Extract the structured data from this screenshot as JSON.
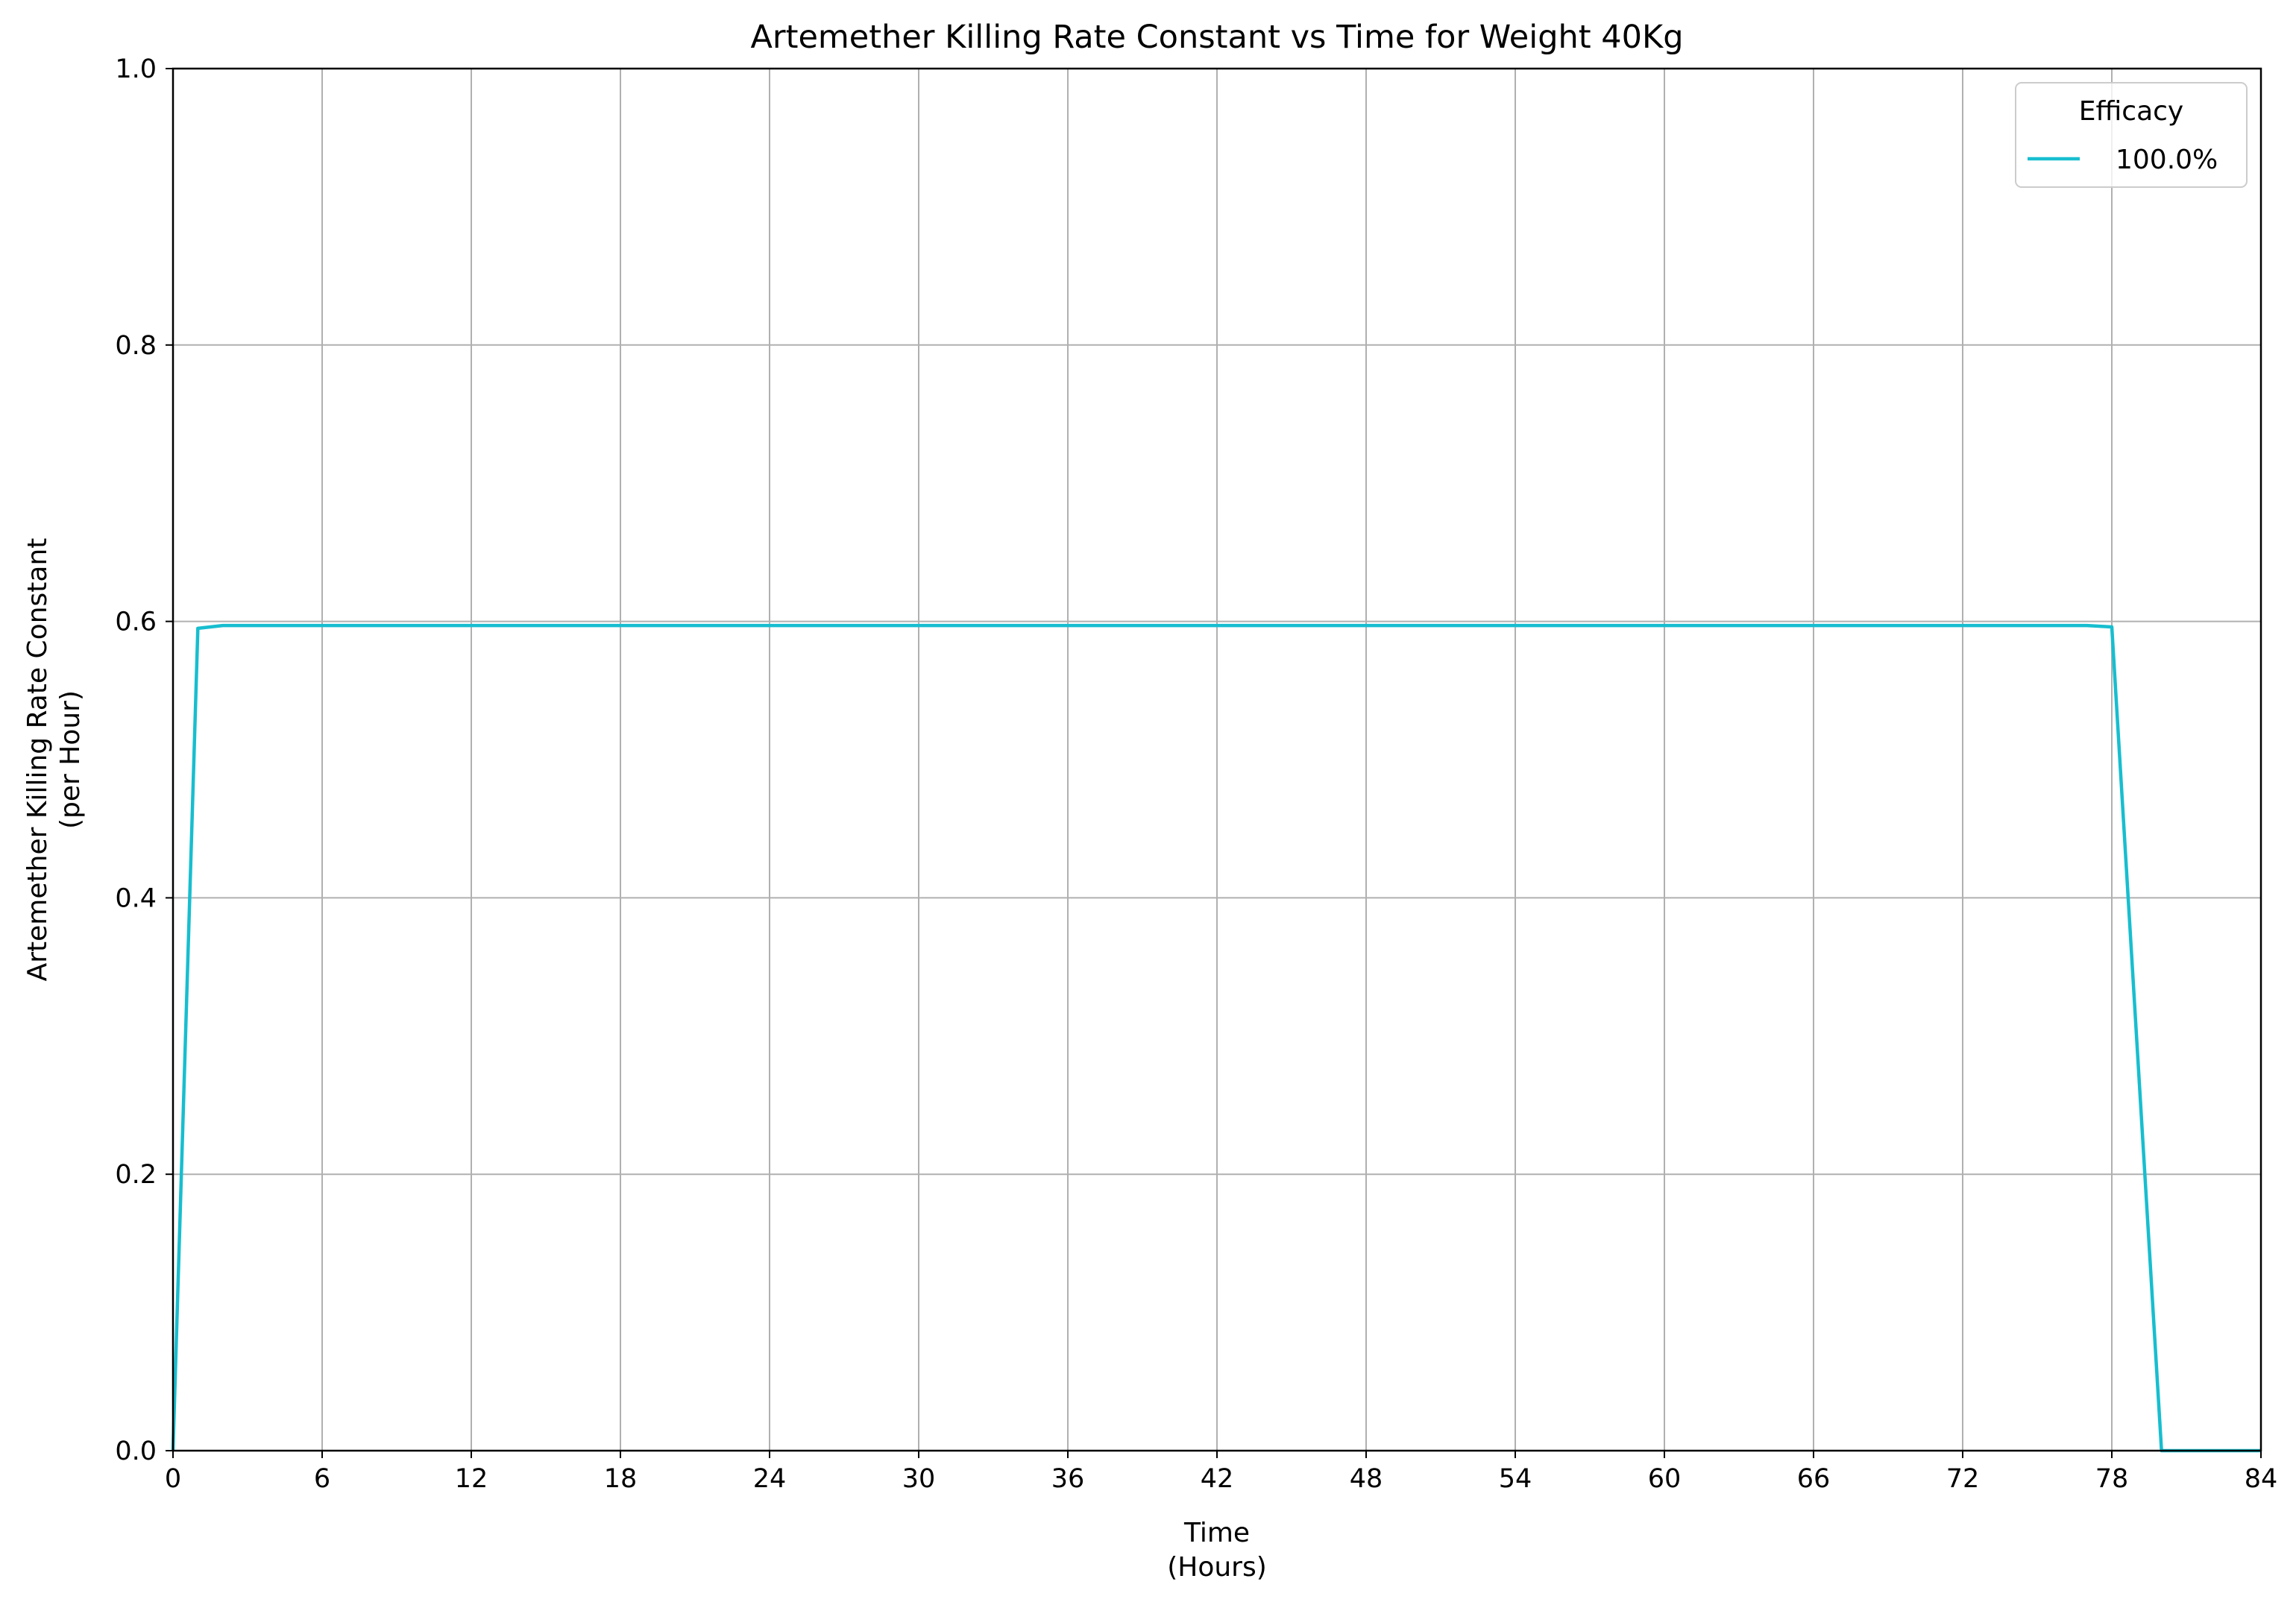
{
  "chart_data": {
    "type": "line",
    "title": "Artemether Killing Rate Constant vs Time for Weight 40Kg",
    "xlabel_line1": "Time",
    "xlabel_line2": "(Hours)",
    "ylabel_line1": "Artemether Killing Rate Constant",
    "ylabel_line2": "(per Hour)",
    "xlim": [
      0,
      84
    ],
    "ylim": [
      0,
      1.0
    ],
    "xticks": [
      0,
      6,
      12,
      18,
      24,
      30,
      36,
      42,
      48,
      54,
      60,
      66,
      72,
      78,
      84
    ],
    "yticks": [
      0.0,
      0.2,
      0.4,
      0.6,
      0.8,
      1.0
    ],
    "ytick_labels": [
      "0.0",
      "0.2",
      "0.4",
      "0.6",
      "0.8",
      "1.0"
    ],
    "grid": true,
    "legend": {
      "title": "Efficacy",
      "placement": "top-right"
    },
    "series": [
      {
        "name": "100.0%",
        "color": "#17becf",
        "x": [
          0,
          1,
          2,
          3,
          6,
          12,
          18,
          24,
          30,
          36,
          42,
          48,
          54,
          60,
          66,
          72,
          77,
          78,
          80,
          81,
          84
        ],
        "y": [
          0,
          0.595,
          0.597,
          0.597,
          0.597,
          0.597,
          0.597,
          0.597,
          0.597,
          0.597,
          0.597,
          0.597,
          0.597,
          0.597,
          0.597,
          0.597,
          0.597,
          0.596,
          0,
          0,
          0
        ]
      }
    ]
  }
}
